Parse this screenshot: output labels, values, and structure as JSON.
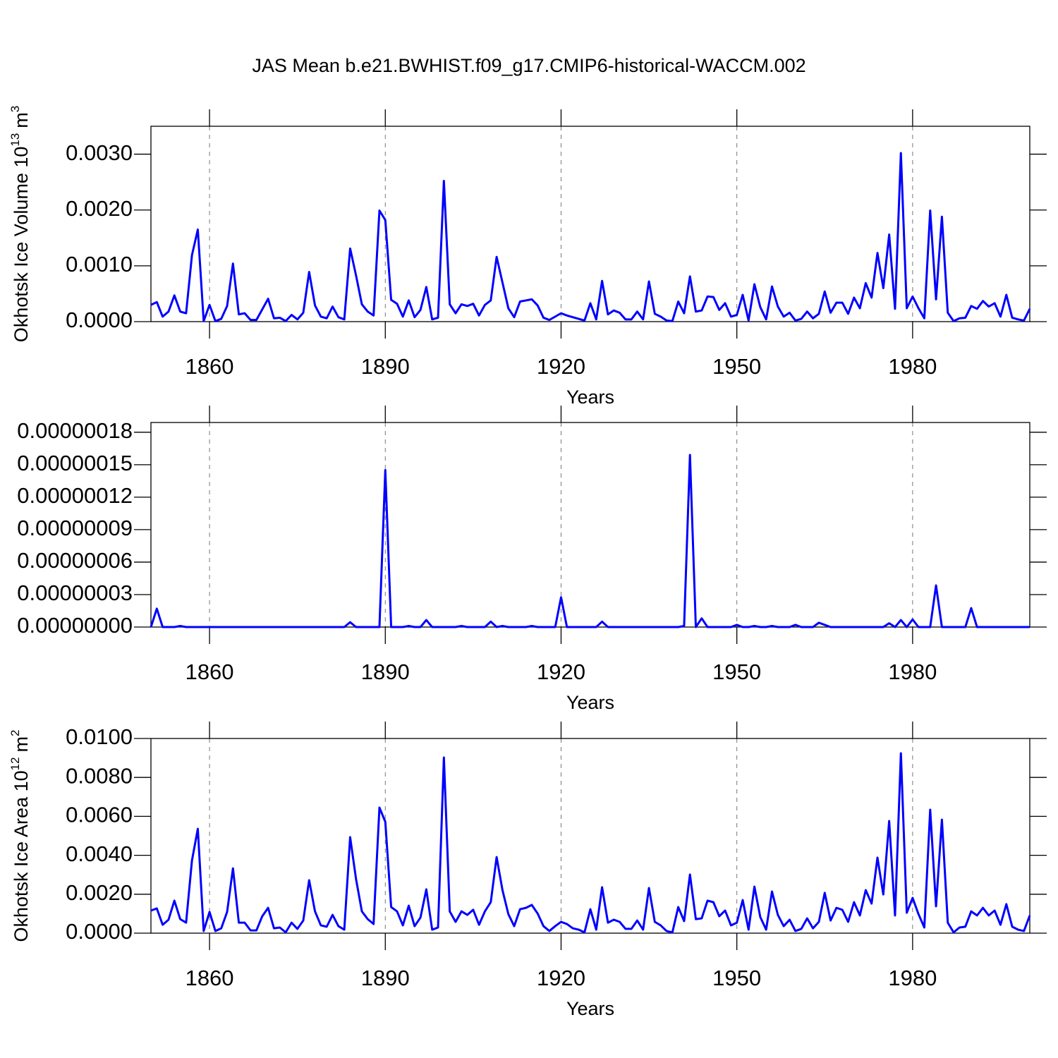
{
  "title": "JAS Mean b.e21.BWHIST.f09_g17.CMIP6-historical-WACCM.002",
  "chart_data": [
    {
      "type": "line",
      "color": "#0000ff",
      "grid": true,
      "xlabel": "Years",
      "ylabel": [
        {
          "text": "Okhotsk Ice Volume 10"
        },
        {
          "text": "13",
          "sup": true
        },
        {
          "text": "m"
        },
        {
          "text": "3",
          "sup": true
        }
      ],
      "xlim": [
        1850,
        2000
      ],
      "xticks": [
        1860,
        1890,
        1920,
        1950,
        1980
      ],
      "ylim": [
        0,
        0.0035
      ],
      "yticks": [
        {
          "value": 0,
          "label": "0.0000"
        },
        {
          "value": 0.001,
          "label": "0.0010"
        },
        {
          "value": 0.002,
          "label": "0.0020"
        },
        {
          "value": 0.003,
          "label": "0.0030"
        }
      ],
      "x": [
        1850,
        1851,
        1852,
        1853,
        1854,
        1855,
        1856,
        1857,
        1858,
        1859,
        1860,
        1861,
        1862,
        1863,
        1864,
        1865,
        1866,
        1867,
        1868,
        1869,
        1870,
        1871,
        1872,
        1873,
        1874,
        1875,
        1876,
        1877,
        1878,
        1879,
        1880,
        1881,
        1882,
        1883,
        1884,
        1885,
        1886,
        1887,
        1888,
        1889,
        1890,
        1891,
        1892,
        1893,
        1894,
        1895,
        1896,
        1897,
        1898,
        1899,
        1900,
        1901,
        1902,
        1903,
        1904,
        1905,
        1906,
        1907,
        1908,
        1909,
        1910,
        1911,
        1912,
        1913,
        1914,
        1915,
        1916,
        1917,
        1918,
        1919,
        1920,
        1921,
        1922,
        1923,
        1924,
        1925,
        1926,
        1927,
        1928,
        1929,
        1930,
        1931,
        1932,
        1933,
        1934,
        1935,
        1936,
        1937,
        1938,
        1939,
        1940,
        1941,
        1942,
        1943,
        1944,
        1945,
        1946,
        1947,
        1948,
        1949,
        1950,
        1951,
        1952,
        1953,
        1954,
        1955,
        1956,
        1957,
        1958,
        1959,
        1960,
        1961,
        1962,
        1963,
        1964,
        1965,
        1966,
        1967,
        1968,
        1969,
        1970,
        1971,
        1972,
        1973,
        1974,
        1975,
        1976,
        1977,
        1978,
        1979,
        1980,
        1981,
        1982,
        1983,
        1984,
        1985,
        1986,
        1987,
        1988,
        1989,
        1990,
        1991,
        1992,
        1993,
        1994,
        1995,
        1996,
        1997,
        1998,
        1999,
        2000
      ],
      "values": [
        0.0003,
        0.00035,
        9e-05,
        0.00018,
        0.00047,
        0.00018,
        0.00015,
        0.00119,
        0.00165,
        1e-05,
        0.0003,
        1e-05,
        5e-05,
        0.00028,
        0.00104,
        0.00013,
        0.00015,
        3e-05,
        3e-05,
        0.00022,
        0.00041,
        6e-05,
        7e-05,
        1e-05,
        0.00012,
        4e-05,
        0.00016,
        0.00089,
        0.00029,
        9e-05,
        6e-05,
        0.00027,
        8e-05,
        4e-05,
        0.00131,
        0.00083,
        0.00031,
        0.00018,
        0.00011,
        0.00199,
        0.00182,
        0.00039,
        0.00032,
        9e-05,
        0.00038,
        8e-05,
        0.00021,
        0.00062,
        4e-05,
        7e-05,
        0.00252,
        0.00031,
        0.00015,
        0.00031,
        0.00028,
        0.00032,
        0.00011,
        0.0003,
        0.00038,
        0.00116,
        0.0007,
        0.00024,
        8e-05,
        0.00036,
        0.00038,
        0.0004,
        0.00029,
        7e-05,
        3e-05,
        9e-05,
        0.00015,
        0.00011,
        8e-05,
        5e-05,
        2e-05,
        0.00033,
        4e-05,
        0.00073,
        0.00013,
        0.0002,
        0.00016,
        4e-05,
        4e-05,
        0.00018,
        4e-05,
        0.00072,
        0.00014,
        9e-05,
        2e-05,
        1e-05,
        0.00036,
        0.00015,
        0.00081,
        0.00018,
        0.0002,
        0.00045,
        0.00044,
        0.00021,
        0.00033,
        9e-05,
        0.00012,
        0.00048,
        2e-05,
        0.00067,
        0.00026,
        4e-05,
        0.00063,
        0.00027,
        9e-05,
        0.00016,
        2e-05,
        5e-05,
        0.00018,
        6e-05,
        0.00014,
        0.00054,
        0.00016,
        0.00034,
        0.00034,
        0.00014,
        0.00043,
        0.00024,
        0.00069,
        0.00043,
        0.00123,
        0.0006,
        0.00156,
        0.00023,
        0.00302,
        0.00024,
        0.00045,
        0.00024,
        6e-05,
        0.00199,
        0.0004,
        0.00188,
        0.00016,
        1e-05,
        6e-05,
        7e-05,
        0.00028,
        0.00023,
        0.00037,
        0.00027,
        0.00033,
        9e-05,
        0.00048,
        7e-05,
        4e-05,
        2e-05,
        0.00023
      ]
    },
    {
      "type": "line",
      "color": "#0000ff",
      "grid": true,
      "xlabel": "Years",
      "xlim": [
        1850,
        2000
      ],
      "xticks": [
        1860,
        1890,
        1920,
        1950,
        1980
      ],
      "ylim": [
        0,
        1.89e-07
      ],
      "yticks": [
        {
          "value": 0,
          "label": "0.00000000"
        },
        {
          "value": 3e-08,
          "label": "0.00000003"
        },
        {
          "value": 6e-08,
          "label": "0.00000006"
        },
        {
          "value": 9e-08,
          "label": "0.00000009"
        },
        {
          "value": 1.2e-07,
          "label": "0.00000012"
        },
        {
          "value": 1.5e-07,
          "label": "0.00000015"
        },
        {
          "value": 1.8e-07,
          "label": "0.00000018"
        }
      ],
      "x": [
        1850,
        1851,
        1852,
        1853,
        1854,
        1855,
        1856,
        1857,
        1858,
        1859,
        1860,
        1861,
        1862,
        1863,
        1864,
        1865,
        1866,
        1867,
        1868,
        1869,
        1870,
        1871,
        1872,
        1873,
        1874,
        1875,
        1876,
        1877,
        1878,
        1879,
        1880,
        1881,
        1882,
        1883,
        1884,
        1885,
        1886,
        1887,
        1888,
        1889,
        1890,
        1891,
        1892,
        1893,
        1894,
        1895,
        1896,
        1897,
        1898,
        1899,
        1900,
        1901,
        1902,
        1903,
        1904,
        1905,
        1906,
        1907,
        1908,
        1909,
        1910,
        1911,
        1912,
        1913,
        1914,
        1915,
        1916,
        1917,
        1918,
        1919,
        1920,
        1921,
        1922,
        1923,
        1924,
        1925,
        1926,
        1927,
        1928,
        1929,
        1930,
        1931,
        1932,
        1933,
        1934,
        1935,
        1936,
        1937,
        1938,
        1939,
        1940,
        1941,
        1942,
        1943,
        1944,
        1945,
        1946,
        1947,
        1948,
        1949,
        1950,
        1951,
        1952,
        1953,
        1954,
        1955,
        1956,
        1957,
        1958,
        1959,
        1960,
        1961,
        1962,
        1963,
        1964,
        1965,
        1966,
        1967,
        1968,
        1969,
        1970,
        1971,
        1972,
        1973,
        1974,
        1975,
        1976,
        1977,
        1978,
        1979,
        1980,
        1981,
        1982,
        1983,
        1984,
        1985,
        1986,
        1987,
        1988,
        1989,
        1990,
        1991,
        1992,
        1993,
        1994,
        1995,
        1996,
        1997,
        1998,
        1999,
        2000
      ],
      "values": [
        0,
        1.7e-08,
        0,
        0,
        0,
        1e-09,
        0,
        0,
        0,
        0,
        0,
        0,
        0,
        0,
        0,
        0,
        0,
        0,
        0,
        0,
        0,
        0,
        0,
        0,
        0,
        0,
        0,
        0,
        0,
        0,
        0,
        0,
        0,
        0,
        4.5e-09,
        0,
        0,
        0,
        0,
        0,
        1.45e-07,
        0,
        0,
        0,
        1e-09,
        0,
        0,
        6.5e-09,
        0,
        0,
        0,
        0,
        0,
        1e-09,
        0,
        0,
        0,
        0,
        5e-09,
        0,
        1e-09,
        0,
        0,
        0,
        0,
        1e-09,
        0,
        0,
        0,
        0,
        2.75e-08,
        0,
        0,
        0,
        0,
        0,
        0,
        5e-09,
        0,
        0,
        0,
        0,
        0,
        0,
        0,
        0,
        0,
        0,
        0,
        0,
        0,
        1e-09,
        1.59e-07,
        0,
        8e-09,
        0,
        0,
        0,
        0,
        0,
        2e-09,
        0,
        0,
        1e-09,
        0,
        0,
        1e-09,
        0,
        0,
        0,
        2e-09,
        0,
        0,
        0,
        4e-09,
        2e-09,
        0,
        0,
        0,
        0,
        0,
        0,
        0,
        0,
        0,
        0,
        3.5e-09,
        0,
        6.5e-09,
        0,
        7e-09,
        0,
        0,
        0,
        3.85e-08,
        0,
        0,
        0,
        0,
        0,
        1.75e-08,
        0,
        0,
        0,
        0,
        0,
        0,
        0,
        0,
        0,
        0
      ]
    },
    {
      "type": "line",
      "color": "#0000ff",
      "grid": true,
      "xlabel": "Years",
      "ylabel": [
        {
          "text": "Okhotsk Ice Area 10"
        },
        {
          "text": "12",
          "sup": true
        },
        {
          "text": "m"
        },
        {
          "text": "2",
          "sup": true
        }
      ],
      "xlim": [
        1850,
        2000
      ],
      "xticks": [
        1860,
        1890,
        1920,
        1950,
        1980
      ],
      "ylim": [
        0,
        0.01
      ],
      "yticks": [
        {
          "value": 0,
          "label": "0.0000"
        },
        {
          "value": 0.002,
          "label": "0.0020"
        },
        {
          "value": 0.004,
          "label": "0.0040"
        },
        {
          "value": 0.006,
          "label": "0.0060"
        },
        {
          "value": 0.008,
          "label": "0.0080"
        },
        {
          "value": 0.01,
          "label": "0.0100"
        }
      ],
      "x": [
        1850,
        1851,
        1852,
        1853,
        1854,
        1855,
        1856,
        1857,
        1858,
        1859,
        1860,
        1861,
        1862,
        1863,
        1864,
        1865,
        1866,
        1867,
        1868,
        1869,
        1870,
        1871,
        1872,
        1873,
        1874,
        1875,
        1876,
        1877,
        1878,
        1879,
        1880,
        1881,
        1882,
        1883,
        1884,
        1885,
        1886,
        1887,
        1888,
        1889,
        1890,
        1891,
        1892,
        1893,
        1894,
        1895,
        1896,
        1897,
        1898,
        1899,
        1900,
        1901,
        1902,
        1903,
        1904,
        1905,
        1906,
        1907,
        1908,
        1909,
        1910,
        1911,
        1912,
        1913,
        1914,
        1915,
        1916,
        1917,
        1918,
        1919,
        1920,
        1921,
        1922,
        1923,
        1924,
        1925,
        1926,
        1927,
        1928,
        1929,
        1930,
        1931,
        1932,
        1933,
        1934,
        1935,
        1936,
        1937,
        1938,
        1939,
        1940,
        1941,
        1942,
        1943,
        1944,
        1945,
        1946,
        1947,
        1948,
        1949,
        1950,
        1951,
        1952,
        1953,
        1954,
        1955,
        1956,
        1957,
        1958,
        1959,
        1960,
        1961,
        1962,
        1963,
        1964,
        1965,
        1966,
        1967,
        1968,
        1969,
        1970,
        1971,
        1972,
        1973,
        1974,
        1975,
        1976,
        1977,
        1978,
        1979,
        1980,
        1981,
        1982,
        1983,
        1984,
        1985,
        1986,
        1987,
        1988,
        1989,
        1990,
        1991,
        1992,
        1993,
        1994,
        1995,
        1996,
        1997,
        1998,
        1999,
        2000
      ],
      "values": [
        0.00116,
        0.00127,
        0.00043,
        0.00069,
        0.00167,
        0.00072,
        0.00054,
        0.00373,
        0.00536,
        0.00011,
        0.00109,
        0.00011,
        0.00025,
        0.00109,
        0.00333,
        0.00054,
        0.00054,
        0.00014,
        0.00014,
        0.00087,
        0.0013,
        0.00025,
        0.00029,
        4e-05,
        0.00054,
        0.00022,
        0.00065,
        0.00272,
        0.00112,
        0.0004,
        0.00033,
        0.00094,
        0.00036,
        0.00018,
        0.00493,
        0.00279,
        0.00112,
        0.00072,
        0.00047,
        0.00645,
        0.00572,
        0.00134,
        0.00112,
        0.0004,
        0.00141,
        0.00036,
        0.0008,
        0.00225,
        0.00018,
        0.00029,
        0.00902,
        0.00112,
        0.00058,
        0.00112,
        0.00094,
        0.0012,
        0.00043,
        0.00112,
        0.00159,
        0.00391,
        0.00221,
        0.00098,
        0.00036,
        0.00123,
        0.0013,
        0.00145,
        0.00101,
        0.00036,
        0.00011,
        0.00036,
        0.00058,
        0.00047,
        0.00025,
        0.00018,
        4e-05,
        0.00123,
        0.00018,
        0.00236,
        0.00054,
        0.00069,
        0.00058,
        0.00022,
        0.00022,
        0.00065,
        0.00018,
        0.00232,
        0.00058,
        0.0004,
        0.00011,
        4e-05,
        0.00134,
        0.00062,
        0.00301,
        0.00072,
        0.00076,
        0.00167,
        0.00159,
        0.00087,
        0.00116,
        0.0004,
        0.00054,
        0.0017,
        0.00018,
        0.00239,
        0.00083,
        0.00018,
        0.00214,
        0.00094,
        0.00036,
        0.00069,
        0.00011,
        0.00022,
        0.00076,
        0.00025,
        0.00058,
        0.00207,
        0.00065,
        0.0013,
        0.0012,
        0.00058,
        0.00159,
        0.00091,
        0.00221,
        0.00152,
        0.00388,
        0.00199,
        0.00576,
        0.00091,
        0.00924,
        0.00105,
        0.00181,
        0.00098,
        0.00029,
        0.00634,
        0.00138,
        0.00583,
        0.00054,
        4e-05,
        0.00029,
        0.00033,
        0.00112,
        0.00091,
        0.0013,
        0.00091,
        0.00116,
        0.00043,
        0.00149,
        0.00033,
        0.00018,
        0.00011,
        0.00091
      ]
    }
  ]
}
